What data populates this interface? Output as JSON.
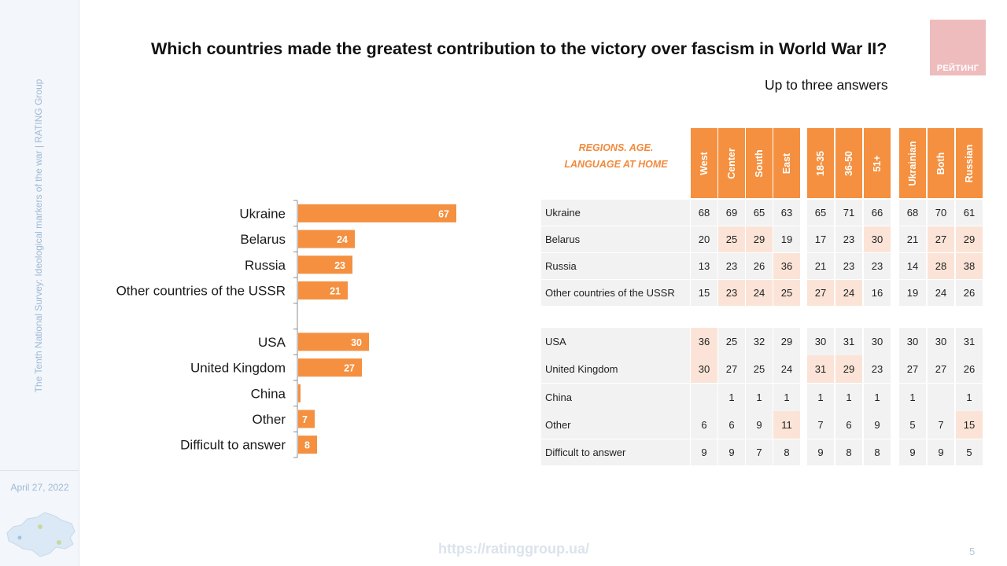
{
  "sidebar": {
    "vertical_text": "The Tenth National Survey: Ideological markers of the war  |  RATING Group",
    "date": "April 27, 2022"
  },
  "header": {
    "title": "Which countries made the greatest contribution to the victory over fascism in World War II?",
    "subtitle": "Up to three answers",
    "logo": "РЕЙТИНГ"
  },
  "colors": {
    "accent": "#f4903f",
    "highlight": "#fbe4d7",
    "cell": "#f2f2f2"
  },
  "chart_data": {
    "type": "bar",
    "orientation": "horizontal",
    "categories": [
      "Ukraine",
      "Belarus",
      "Russia",
      "Other countries of the USSR",
      "USA",
      "United Kingdom",
      "China",
      "Other",
      "Difficult to answer"
    ],
    "values": [
      67,
      24,
      23,
      21,
      30,
      27,
      1,
      7,
      8
    ],
    "groups": [
      [
        0,
        1,
        2,
        3
      ],
      [
        4,
        5,
        6,
        7,
        8
      ]
    ],
    "title": "",
    "xlabel": "",
    "ylabel": "",
    "xlim": [
      0,
      100
    ],
    "grid": false
  },
  "table": {
    "regions_label": "REGIONS. AGE.\nLANGUAGE AT HOME",
    "columns": [
      "West",
      "Center",
      "South",
      "East",
      "18-35",
      "36-50",
      "51+",
      "Ukrainian",
      "Both",
      "Russian"
    ],
    "rows": [
      {
        "label": "Ukraine",
        "values": [
          "68",
          "69",
          "65",
          "63",
          "65",
          "71",
          "66",
          "68",
          "70",
          "61"
        ],
        "highlight": []
      },
      {
        "label": "Belarus",
        "values": [
          "20",
          "25",
          "29",
          "19",
          "17",
          "23",
          "30",
          "21",
          "27",
          "29"
        ],
        "highlight": [
          1,
          2,
          6,
          8,
          9
        ]
      },
      {
        "label": "Russia",
        "values": [
          "13",
          "23",
          "26",
          "36",
          "21",
          "23",
          "23",
          "14",
          "28",
          "38"
        ],
        "highlight": [
          3,
          8,
          9
        ]
      },
      {
        "label": "Other countries of the USSR",
        "values": [
          "15",
          "23",
          "24",
          "25",
          "27",
          "24",
          "16",
          "19",
          "24",
          "26"
        ],
        "highlight": [
          1,
          2,
          3,
          4,
          5
        ]
      },
      {
        "label": "USA",
        "values": [
          "36",
          "25",
          "32",
          "29",
          "30",
          "31",
          "30",
          "30",
          "30",
          "31"
        ],
        "highlight": [
          0
        ]
      },
      {
        "label": "United Kingdom",
        "values": [
          "30",
          "27",
          "25",
          "24",
          "31",
          "29",
          "23",
          "27",
          "27",
          "26"
        ],
        "highlight": [
          0,
          4,
          5
        ]
      },
      {
        "label": "China",
        "values": [
          "",
          "1",
          "1",
          "1",
          "1",
          "1",
          "1",
          "1",
          "",
          "1"
        ],
        "highlight": []
      },
      {
        "label": "Other",
        "values": [
          "6",
          "6",
          "9",
          "11",
          "7",
          "6",
          "9",
          "5",
          "7",
          "15"
        ],
        "highlight": [
          3,
          9
        ]
      },
      {
        "label": "Difficult to answer",
        "values": [
          "9",
          "9",
          "7",
          "8",
          "9",
          "8",
          "8",
          "9",
          "9",
          "5"
        ],
        "highlight": []
      }
    ]
  },
  "footer": {
    "url": "https://ratinggroup.ua/",
    "page": "5"
  }
}
